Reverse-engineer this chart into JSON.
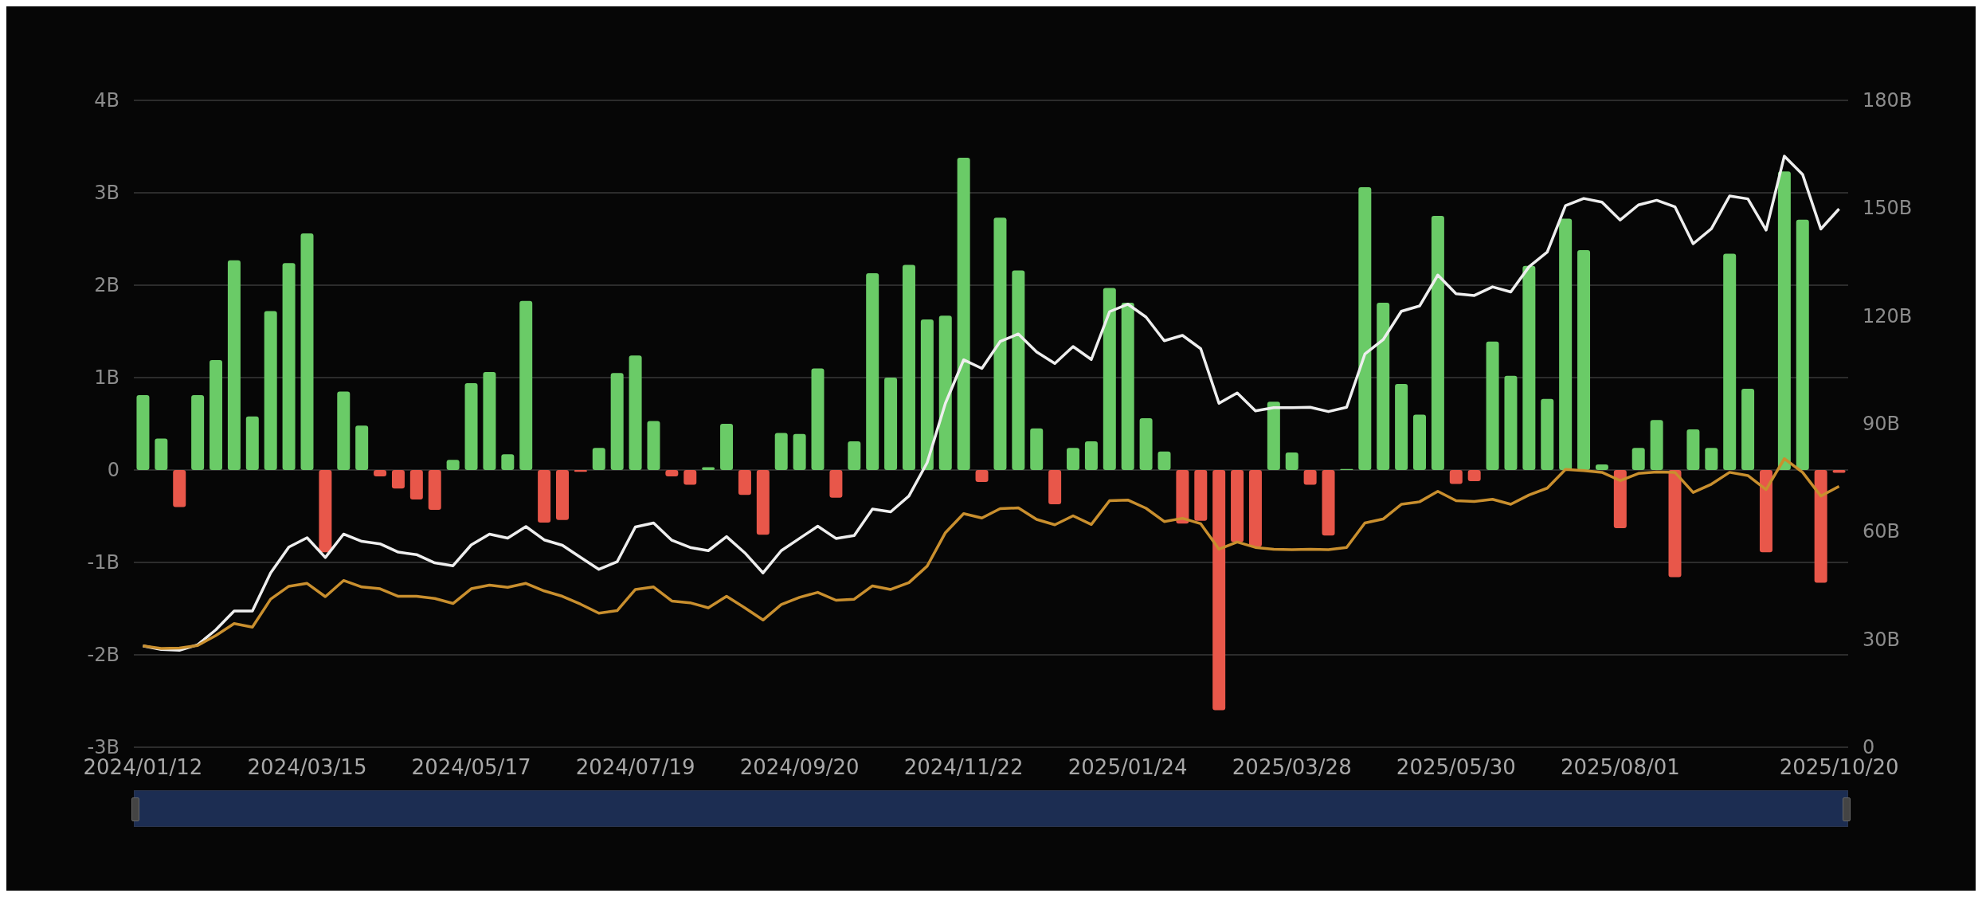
{
  "chart_data": {
    "type": "bar",
    "categories": [
      "2024/01/12",
      null,
      null,
      null,
      null,
      null,
      null,
      null,
      null,
      "2024/03/15",
      null,
      null,
      null,
      null,
      null,
      null,
      null,
      null,
      "2024/05/17",
      null,
      null,
      null,
      null,
      null,
      null,
      null,
      null,
      "2024/07/19",
      null,
      null,
      null,
      null,
      null,
      null,
      null,
      null,
      "2024/09/20",
      null,
      null,
      null,
      null,
      null,
      null,
      null,
      null,
      "2024/11/22",
      null,
      null,
      null,
      null,
      null,
      null,
      null,
      null,
      "2025/01/24",
      null,
      null,
      null,
      null,
      null,
      null,
      null,
      null,
      "2025/03/28",
      null,
      null,
      null,
      null,
      null,
      null,
      null,
      null,
      "2025/05/30",
      null,
      null,
      null,
      null,
      null,
      null,
      null,
      null,
      "2025/08/01",
      null,
      null,
      null,
      null,
      null,
      null,
      null,
      null,
      null,
      null,
      null,
      "2025/10/20"
    ],
    "series": [
      {
        "values": [
          0.81,
          0.34,
          -0.4,
          0.81,
          1.19,
          2.27,
          0.58,
          1.72,
          2.24,
          2.56,
          -0.89,
          0.85,
          0.48,
          -0.07,
          -0.2,
          -0.32,
          -0.43,
          0.11,
          0.94,
          1.06,
          0.17,
          1.83,
          -0.57,
          -0.54,
          -0.02,
          0.24,
          1.05,
          1.24,
          0.53,
          -0.07,
          -0.16,
          0.03,
          0.5,
          -0.27,
          -0.7,
          0.4,
          0.39,
          1.1,
          -0.3,
          0.31,
          2.13,
          1.0,
          2.22,
          1.63,
          1.67,
          3.38,
          -0.13,
          2.73,
          2.16,
          0.45,
          -0.37,
          0.24,
          0.31,
          1.97,
          1.81,
          0.56,
          0.2,
          -0.58,
          -0.55,
          -2.6,
          -0.78,
          -0.83,
          0.74,
          0.19,
          -0.16,
          -0.71,
          0.01,
          3.06,
          1.81,
          0.93,
          0.6,
          2.75,
          -0.15,
          -0.12,
          1.39,
          1.02,
          2.21,
          0.77,
          2.72,
          2.38,
          0.06,
          -0.63,
          0.24,
          0.54,
          -1.16,
          0.44,
          0.24,
          2.34,
          0.88,
          -0.89,
          3.23,
          2.71,
          -1.22,
          -0.03
        ],
        "colors": [
          "#6acb67",
          "#6acb67",
          "#e8574a",
          "#6acb67",
          "#6acb67",
          "#6acb67",
          "#6acb67",
          "#6acb67",
          "#6acb67",
          "#6acb67",
          "#e8574a",
          "#6acb67",
          "#6acb67",
          "#e8574a",
          "#e8574a",
          "#e8574a",
          "#e8574a",
          "#6acb67",
          "#6acb67",
          "#6acb67",
          "#6acb67",
          "#6acb67",
          "#e8574a",
          "#e8574a",
          "#e8574a",
          "#6acb67",
          "#6acb67",
          "#6acb67",
          "#6acb67",
          "#e8574a",
          "#e8574a",
          "#6acb67",
          "#6acb67",
          "#e8574a",
          "#e8574a",
          "#6acb67",
          "#6acb67",
          "#6acb67",
          "#e8574a",
          "#6acb67",
          "#6acb67",
          "#6acb67",
          "#6acb67",
          "#6acb67",
          "#6acb67",
          "#6acb67",
          "#e8574a",
          "#6acb67",
          "#6acb67",
          "#6acb67",
          "#e8574a",
          "#6acb67",
          "#6acb67",
          "#6acb67",
          "#6acb67",
          "#6acb67",
          "#6acb67",
          "#e8574a",
          "#e8574a",
          "#e8574a",
          "#e8574a",
          "#e8574a",
          "#6acb67",
          "#6acb67",
          "#e8574a",
          "#e8574a",
          "#6acb67",
          "#6acb67",
          "#6acb67",
          "#6acb67",
          "#6acb67",
          "#6acb67",
          "#e8574a",
          "#e8574a",
          "#6acb67",
          "#6acb67",
          "#6acb67",
          "#6acb67",
          "#6acb67",
          "#6acb67",
          "#6acb67",
          "#e8574a",
          "#6acb67",
          "#6acb67",
          "#e8574a",
          "#6acb67",
          "#6acb67",
          "#6acb67",
          "#6acb67",
          "#e8574a",
          "#6acb67",
          "#6acb67",
          "#e8574a",
          "#e8574a"
        ]
      },
      {
        "type": "line",
        "axis": "y2",
        "color": "#eeeeee",
        "values": [
          28.2,
          27.2,
          27.0,
          28.5,
          32.7,
          37.9,
          37.9,
          48.5,
          55.7,
          58.3,
          52.8,
          59.3,
          57.3,
          56.6,
          54.3,
          53.6,
          51.3,
          50.5,
          56.3,
          59.3,
          58.2,
          61.4,
          57.7,
          56.2,
          52.8,
          49.5,
          51.6,
          61.3,
          62.4,
          57.6,
          55.6,
          54.7,
          58.6,
          54.1,
          48.5,
          54.7,
          58.1,
          61.5,
          58.1,
          58.9,
          66.3,
          65.5,
          69.9,
          79.2,
          95.7,
          107.8,
          105.4,
          112.9,
          115.0,
          110.0,
          106.8,
          111.5,
          107.9,
          121.2,
          123.3,
          119.7,
          113.1,
          114.6,
          110.9,
          95.7,
          98.6,
          93.6,
          94.5,
          94.5,
          94.6,
          93.4,
          94.6,
          109.4,
          113.4,
          121.3,
          122.8,
          131.4,
          126.2,
          125.7,
          128.1,
          126.7,
          133.7,
          137.8,
          150.7,
          152.7,
          151.7,
          146.7,
          150.9,
          152.2,
          150.4,
          140.1,
          144.3,
          153.4,
          152.6,
          143.9,
          164.5,
          159.4,
          144.2,
          149.8
        ]
      },
      {
        "type": "line",
        "axis": "y2",
        "color": "#c98f2e",
        "values": [
          28.2,
          27.5,
          27.6,
          28.3,
          31.1,
          34.4,
          33.4,
          41.2,
          44.8,
          45.6,
          41.9,
          46.4,
          44.6,
          44.1,
          42.0,
          42.0,
          41.4,
          40.0,
          44.1,
          45.1,
          44.5,
          45.6,
          43.5,
          42.0,
          39.8,
          37.3,
          38.0,
          43.9,
          44.6,
          40.7,
          40.2,
          38.8,
          42.0,
          38.8,
          35.4,
          39.7,
          41.7,
          43.1,
          40.9,
          41.2,
          44.9,
          43.9,
          45.8,
          50.4,
          59.7,
          65.0,
          63.8,
          66.4,
          66.6,
          63.4,
          61.9,
          64.4,
          62.0,
          68.6,
          68.8,
          66.5,
          62.8,
          63.7,
          62.2,
          55.1,
          57.1,
          55.6,
          55.1,
          55.0,
          55.1,
          55.0,
          55.6,
          62.4,
          63.5,
          67.6,
          68.3,
          71.2,
          68.6,
          68.4,
          69.0,
          67.6,
          70.2,
          72.1,
          77.3,
          77.0,
          76.5,
          74.2,
          76.2,
          76.6,
          76.5,
          70.9,
          73.2,
          76.5,
          75.6,
          71.7,
          80.3,
          76.5,
          69.9,
          72.6
        ]
      }
    ],
    "ylim": [
      -3,
      4
    ],
    "yticks": [
      {
        "value": -3,
        "label": "-3B"
      },
      {
        "value": -2,
        "label": "-2B"
      },
      {
        "value": -1,
        "label": "-1B"
      },
      0,
      {
        "value": 1,
        "label": "1B"
      },
      {
        "value": 2,
        "label": "2B"
      },
      {
        "value": 3,
        "label": "3B"
      },
      {
        "value": 4,
        "label": "4B"
      }
    ],
    "y2lim": [
      0,
      180
    ],
    "y2ticks": [
      0,
      {
        "value": 30,
        "label": "30B"
      },
      {
        "value": 60,
        "label": "60B"
      },
      {
        "value": 90,
        "label": "90B"
      },
      {
        "value": 120,
        "label": "120B"
      },
      {
        "value": 150,
        "label": "150B"
      },
      {
        "value": 180,
        "label": "180B"
      }
    ],
    "grid": "y",
    "marker": "none",
    "line_style": "solid"
  }
}
